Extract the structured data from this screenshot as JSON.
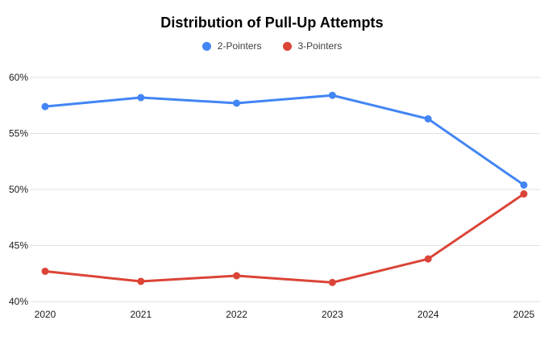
{
  "chart_data": {
    "type": "line",
    "title": "Distribution of Pull-Up Attempts",
    "categories": [
      "2020",
      "2021",
      "2022",
      "2023",
      "2024",
      "2025"
    ],
    "series": [
      {
        "name": "2-Pointers",
        "color": "#4285f4",
        "values": [
          57.4,
          58.2,
          57.7,
          58.4,
          56.3,
          50.4
        ]
      },
      {
        "name": "3-Pointers",
        "color": "#db4437",
        "values": [
          42.7,
          41.8,
          42.3,
          41.7,
          43.8,
          49.6
        ]
      }
    ],
    "ylim": [
      40,
      60
    ],
    "yticks": [
      {
        "value": 40,
        "label": "40%"
      },
      {
        "value": 45,
        "label": "45%"
      },
      {
        "value": 50,
        "label": "50%"
      },
      {
        "value": 55,
        "label": "55%"
      },
      {
        "value": 60,
        "label": "60%"
      }
    ],
    "xlabel": "",
    "ylabel": "",
    "grid": true,
    "legend_position": "top",
    "gridline_color": "#e2e2e2",
    "background_color": "#ffffff",
    "axis_text_color": "#1a1a1a"
  }
}
